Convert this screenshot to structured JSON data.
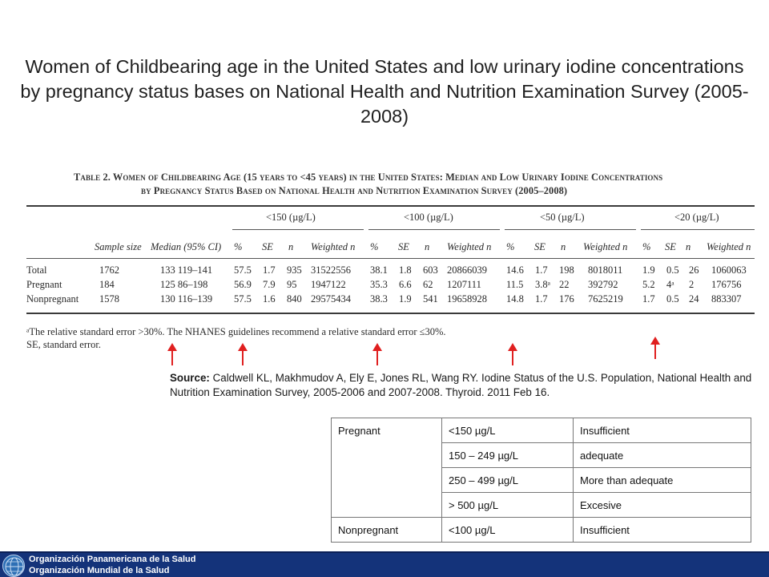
{
  "slide": {
    "title": "Women of Childbearing age in the United States and low urinary iodine concentrations by pregnancy status bases on National Health and Nutrition Examination Survey (2005-2008)"
  },
  "scan_table": {
    "caption_line1": "Table 2. Women of Childbearing Age (15 years to <45 years) in the United States: Median and Low Urinary Iodine Concentrations",
    "caption_line2": "by Pregnancy Status Based on National Health and Nutrition Examination Survey (2005–2008)",
    "group_headers": [
      "<150 (µg/L)",
      "<100 (µg/L)",
      "<50 (µg/L)",
      "<20 (µg/L)"
    ],
    "col_sample": "Sample size",
    "col_median": "Median (95% CI)",
    "sub_headers": [
      "%",
      "SE",
      "n",
      "Weighted n"
    ],
    "rows": [
      {
        "label": "Total",
        "sample": "1762",
        "median": "133 119–141",
        "g1": [
          "57.5",
          "1.7",
          "935",
          "31522556"
        ],
        "g2": [
          "38.1",
          "1.8",
          "603",
          "20866039"
        ],
        "g3": [
          "14.6",
          "1.7",
          "198",
          "8018011"
        ],
        "g4": [
          "1.9",
          "0.5",
          "26",
          "1060063"
        ]
      },
      {
        "label": "Pregnant",
        "sample": "184",
        "median": "125 86–198",
        "g1": [
          "56.9",
          "7.9",
          "95",
          "1947122"
        ],
        "g2": [
          "35.3",
          "6.6",
          "62",
          "1207111"
        ],
        "g3": [
          "11.5",
          "3.8ᵃ",
          "22",
          "392792"
        ],
        "g4": [
          "5.2",
          "4ᵃ",
          "2",
          "176756"
        ]
      },
      {
        "label": "Nonpregnant",
        "sample": "1578",
        "median": "130 116–139",
        "g1": [
          "57.5",
          "1.6",
          "840",
          "29575434"
        ],
        "g2": [
          "38.3",
          "1.9",
          "541",
          "19658928"
        ],
        "g3": [
          "14.8",
          "1.7",
          "176",
          "7625219"
        ],
        "g4": [
          "1.7",
          "0.5",
          "24",
          "883307"
        ]
      }
    ],
    "footnote_line1": "ᵃThe relative standard error >30%. The NHANES guidelines recommend a relative standard error ≤30%.",
    "footnote_line2": "SE, standard error."
  },
  "source": {
    "label": "Source:",
    "text": " Caldwell KL, Makhmudov A, Ely E, Jones RL, Wang RY. Iodine Status of the U.S. Population, National Health and Nutrition Examination Survey, 2005-2006 and 2007-2008. Thyroid. 2011 Feb 16."
  },
  "iodine_table": {
    "pregnant_label": "Pregnant",
    "nonpregnant_label": "Nonpregnant",
    "rows": [
      {
        "range": "<150 µg/L",
        "status": "Insufficient"
      },
      {
        "range": "150 – 249 µg/L",
        "status": "adequate"
      },
      {
        "range": "250 – 499 µg/L",
        "status": "More than adequate"
      },
      {
        "range": "> 500 µg/L",
        "status": "Excesive"
      },
      {
        "range": "<100 µg/L",
        "status": "Insufficient"
      }
    ]
  },
  "footer": {
    "line1": "Organización Panamericana de la Salud",
    "line2": "Organización Mundial de la Salud"
  },
  "colors": {
    "arrow": "#e02020",
    "footer_bar": "#14337a"
  }
}
